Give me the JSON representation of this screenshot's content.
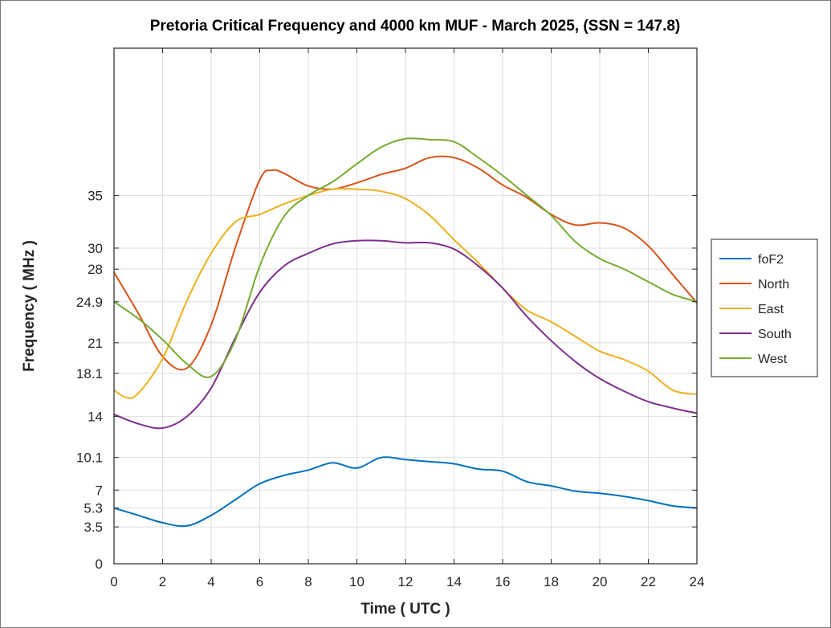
{
  "chart_data": {
    "type": "line",
    "title": "Pretoria Critical Frequency and 4000 km MUF - March 2025, (SSN = 147.8)",
    "xlabel": "Time ( UTC )",
    "ylabel": "Frequency ( MHz )",
    "xlim": [
      0,
      24
    ],
    "ylim": [
      0,
      49
    ],
    "xticks": [
      0,
      2,
      4,
      6,
      8,
      10,
      12,
      14,
      16,
      18,
      20,
      22,
      24
    ],
    "yticks": [
      0,
      3.5,
      5.3,
      7,
      10.1,
      14,
      18.1,
      21,
      24.9,
      28,
      30,
      35
    ],
    "ytick_labels": [
      "0",
      "3.5",
      "5.3",
      "7",
      "10.1",
      "14",
      "18.1",
      "21",
      "24.9",
      "28",
      "30",
      "35"
    ],
    "grid": true,
    "legend_position": "outside-right",
    "series": [
      {
        "name": "foF2",
        "color": "#0072BD",
        "x": [
          0,
          1,
          2,
          3,
          4,
          5,
          6,
          7,
          8,
          9,
          10,
          11,
          12,
          13,
          14,
          15,
          16,
          17,
          18,
          19,
          20,
          21,
          22,
          23,
          24
        ],
        "y": [
          5.3,
          4.6,
          3.9,
          3.6,
          4.6,
          6.1,
          7.6,
          8.4,
          8.9,
          9.6,
          9.1,
          10.1,
          9.9,
          9.7,
          9.5,
          9.0,
          8.8,
          7.8,
          7.4,
          6.9,
          6.7,
          6.4,
          6.0,
          5.5,
          5.3
        ]
      },
      {
        "name": "North",
        "color": "#D95319",
        "x": [
          0,
          1,
          2,
          3,
          4,
          5,
          6,
          6.5,
          7,
          8,
          9,
          10,
          11,
          12,
          13,
          14,
          15,
          16,
          17,
          18,
          19,
          20,
          21,
          22,
          23,
          24
        ],
        "y": [
          27.7,
          23.8,
          19.7,
          18.6,
          22.7,
          30.1,
          36.5,
          37.4,
          37.1,
          35.9,
          35.6,
          36.2,
          37.0,
          37.6,
          38.6,
          38.6,
          37.6,
          36.0,
          34.8,
          33.2,
          32.2,
          32.4,
          31.9,
          30.2,
          27.5,
          24.8
        ],
        "visible_x_max": 24
      },
      {
        "name": "East",
        "color": "#EDB120",
        "x": [
          0,
          0.5,
          1,
          2,
          3,
          4,
          5,
          6,
          7,
          8,
          9,
          10,
          11,
          12,
          13,
          14,
          15,
          16,
          17,
          18,
          19,
          20,
          21,
          22,
          23,
          24
        ],
        "y": [
          16.5,
          15.8,
          16.2,
          19.5,
          25.0,
          29.5,
          32.5,
          33.2,
          34.2,
          35.0,
          35.6,
          35.6,
          35.4,
          34.7,
          33.1,
          30.8,
          28.6,
          26.2,
          24.1,
          23.0,
          21.6,
          20.2,
          19.4,
          18.3,
          16.5,
          16.1
        ]
      },
      {
        "name": "South",
        "color": "#7E2F8E",
        "x": [
          0,
          1,
          2,
          3,
          4,
          5,
          6,
          7,
          8,
          9,
          10,
          11,
          12,
          13,
          14,
          15,
          16,
          17,
          18,
          19,
          20,
          21,
          22,
          23,
          24
        ],
        "y": [
          14.2,
          13.3,
          12.9,
          14.0,
          16.7,
          21.5,
          25.8,
          28.3,
          29.5,
          30.4,
          30.7,
          30.7,
          30.5,
          30.5,
          29.9,
          28.3,
          26.2,
          23.5,
          21.2,
          19.2,
          17.6,
          16.4,
          15.4,
          14.8,
          14.3
        ]
      },
      {
        "name": "West",
        "color": "#77AC30",
        "x": [
          0,
          1,
          2,
          3,
          4,
          5,
          6,
          7,
          8,
          9,
          10,
          11,
          12,
          13,
          14,
          15,
          16,
          17,
          18,
          19,
          20,
          21,
          22,
          23,
          24
        ],
        "y": [
          24.9,
          23.3,
          21.3,
          19.0,
          17.8,
          21.3,
          28.3,
          33.0,
          35.0,
          36.3,
          38.0,
          39.6,
          40.4,
          40.3,
          40.1,
          38.6,
          36.9,
          35.0,
          33.1,
          30.6,
          29.0,
          28.0,
          26.8,
          25.6,
          24.9
        ]
      }
    ]
  }
}
